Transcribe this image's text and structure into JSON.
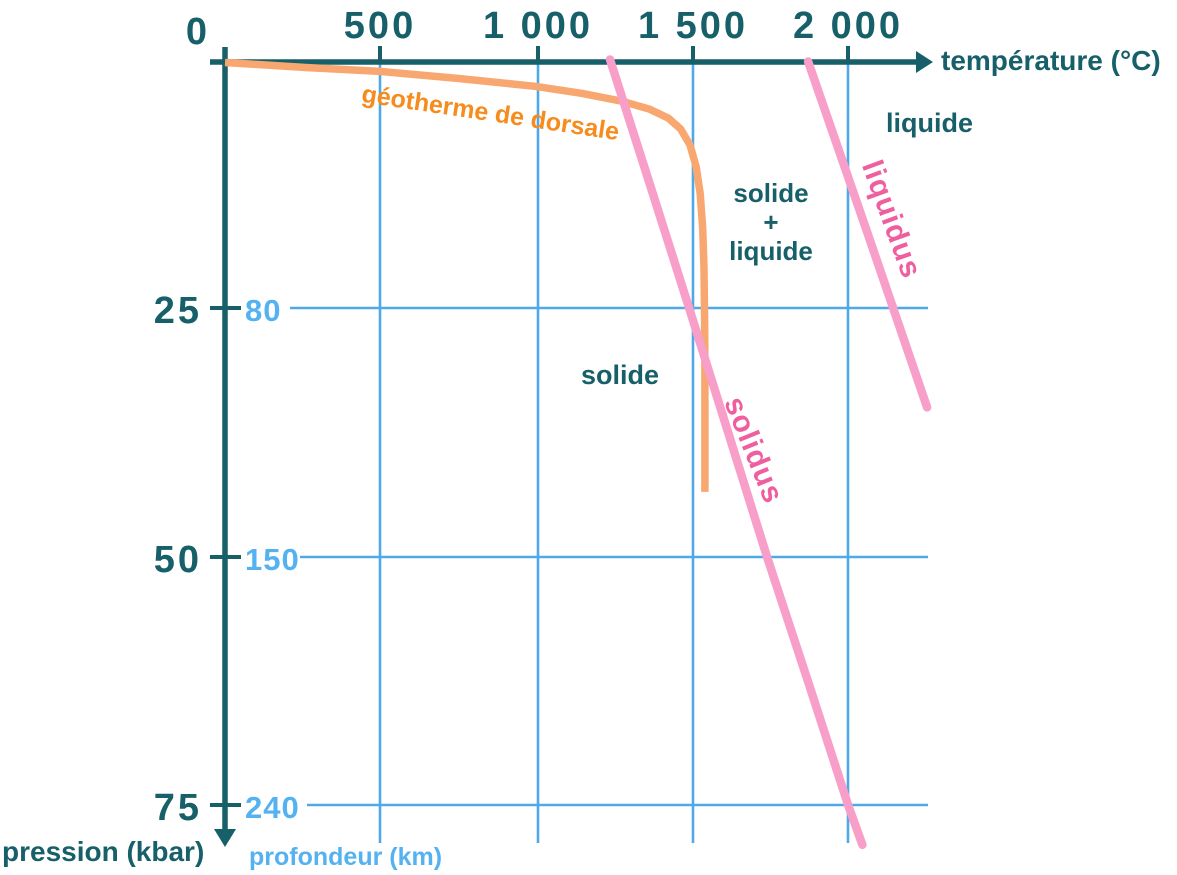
{
  "axes": {
    "x_origin_label": "0",
    "x_ticks": [
      "500",
      "1 000",
      "1 500",
      "2 000"
    ],
    "x_title": "température (°C)",
    "y_pressure_ticks": [
      "25",
      "50",
      "75"
    ],
    "y_pressure_title": "pression (kbar)",
    "y_depth_ticks": [
      "80",
      "150",
      "240"
    ],
    "y_depth_title": "profondeur (km)"
  },
  "annotations": {
    "geotherm_label": "géotherme de dorsale",
    "liquidus_label": "liquidus",
    "solidus_label": "solidus",
    "region_liquid": "liquide",
    "region_solid_plus_liquid": "solide\n+\nliquide",
    "region_solid": "solide"
  },
  "colors": {
    "teal": "#175f69",
    "blue": "#54b2f1",
    "grid_blue": "#4fa9e9",
    "orange_curve": "#f9a770",
    "orange_label": "#f68b1e",
    "pink_line": "#f89fc9",
    "pink_label": "#ef5f9f",
    "bg": "#ffffff"
  },
  "chart_data": {
    "type": "line",
    "xlabel": "température (°C)",
    "ylabel_left": "pression (kbar)",
    "ylabel_right": "profondeur (km)",
    "x_range_c": [
      0,
      2300
    ],
    "y_range_pressure_kbar": [
      0,
      80
    ],
    "x_ticks_c": [
      500,
      1000,
      1500,
      2000
    ],
    "y_ticks_pressure_kbar": [
      25,
      50,
      75
    ],
    "y_ticks_depth_km": [
      80,
      150,
      240
    ],
    "grid": true,
    "regions": [
      "solide",
      "solide + liquide",
      "liquide"
    ],
    "series": [
      {
        "id": "geotherm-curve",
        "name": "géotherme de dorsale",
        "color": "#f9a770",
        "stroke_width": 7.5,
        "linecap": "butt",
        "points_T_P": [
          [
            0,
            0.3
          ],
          [
            260,
            0.8
          ],
          [
            500,
            1.2
          ],
          [
            750,
            1.9
          ],
          [
            1000,
            2.7
          ],
          [
            1150,
            3.4
          ],
          [
            1280,
            4.2
          ],
          [
            1370,
            5.0
          ],
          [
            1430,
            5.9
          ],
          [
            1470,
            7.0
          ],
          [
            1500,
            8.6
          ],
          [
            1520,
            10.8
          ],
          [
            1533,
            13.5
          ],
          [
            1541,
            17
          ],
          [
            1545,
            21
          ],
          [
            1547,
            26
          ],
          [
            1548,
            31
          ],
          [
            1548,
            43.5
          ]
        ]
      },
      {
        "id": "solidus-line",
        "name": "solidus",
        "color": "#f89fc9",
        "stroke_width": 8.5,
        "linecap": "round",
        "points_T_P": [
          [
            1242,
            0
          ],
          [
            1370,
            12.5
          ],
          [
            1497,
            25
          ],
          [
            1623,
            37.5
          ],
          [
            1748,
            50
          ],
          [
            1880,
            62.5
          ],
          [
            2010,
            75
          ],
          [
            2056,
            79
          ]
        ]
      },
      {
        "id": "liquidus-line",
        "name": "liquidus",
        "color": "#f89fc9",
        "stroke_width": 8.5,
        "linecap": "round",
        "points_T_P": [
          [
            1881,
            0.2
          ],
          [
            2073,
            17.5
          ],
          [
            2265,
            35
          ]
        ]
      }
    ]
  }
}
